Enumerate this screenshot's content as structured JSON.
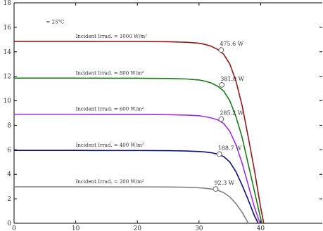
{
  "chart_data": {
    "type": "line",
    "title": "",
    "xlabel": "",
    "ylabel": "",
    "xlim": [
      0,
      50
    ],
    "ylim": [
      0,
      18
    ],
    "xticks": [
      "0",
      "10",
      "20",
      "30",
      "40"
    ],
    "yticks": [
      "0",
      "2",
      "4",
      "6",
      "8",
      "10",
      "12",
      "14",
      "16",
      "18"
    ],
    "grid": false,
    "temperature_label": "= 25°C",
    "series": [
      {
        "name": "Incident Irrad. = 1000 W/m²",
        "color": "#8b1a1a",
        "x": [
          0,
          5,
          10,
          15,
          20,
          25,
          28,
          30,
          31,
          32,
          33,
          34,
          35,
          36,
          37,
          38,
          39,
          40,
          40.5
        ],
        "y": [
          14.85,
          14.85,
          14.85,
          14.84,
          14.84,
          14.82,
          14.78,
          14.7,
          14.6,
          14.45,
          14.2,
          13.8,
          13.0,
          11.6,
          9.6,
          7.0,
          4.3,
          1.3,
          0
        ],
        "mpp": {
          "x": 33.6,
          "y": 14.15
        },
        "power_label": "475.6  W"
      },
      {
        "name": "Incident Irrad. = 800 W/m²",
        "color": "#1a7a1a",
        "x": [
          0,
          5,
          10,
          15,
          20,
          25,
          28,
          30,
          31,
          32,
          33,
          34,
          35,
          36,
          37,
          38,
          39,
          40,
          40.2
        ],
        "y": [
          11.85,
          11.85,
          11.85,
          11.84,
          11.84,
          11.82,
          11.78,
          11.7,
          11.6,
          11.45,
          11.2,
          10.8,
          10.0,
          8.7,
          7.0,
          4.8,
          2.6,
          0.4,
          0
        ],
        "mpp": {
          "x": 33.7,
          "y": 11.3
        },
        "power_label": "381.0  W"
      },
      {
        "name": "Incident Irrad. = 600 W/m²",
        "color": "#9b30e0",
        "x": [
          0,
          5,
          10,
          15,
          20,
          25,
          28,
          30,
          31,
          32,
          33,
          34,
          35,
          36,
          37,
          38,
          39,
          39.9
        ],
        "y": [
          8.9,
          8.9,
          8.9,
          8.89,
          8.89,
          8.87,
          8.83,
          8.78,
          8.7,
          8.6,
          8.45,
          8.15,
          7.5,
          6.4,
          4.9,
          3.1,
          1.3,
          0
        ],
        "mpp": {
          "x": 33.6,
          "y": 8.5
        },
        "power_label": "285.2  W"
      },
      {
        "name": "Incident Irrad. = 400 W/m²",
        "color": "#0d0d7a",
        "x": [
          0,
          5,
          10,
          15,
          20,
          25,
          28,
          30,
          31,
          32,
          33,
          34,
          35,
          36,
          37,
          38,
          39,
          39.6
        ],
        "y": [
          5.95,
          5.95,
          5.95,
          5.94,
          5.94,
          5.93,
          5.9,
          5.86,
          5.82,
          5.76,
          5.65,
          5.45,
          5.0,
          4.2,
          3.1,
          1.9,
          0.6,
          0
        ],
        "mpp": {
          "x": 33.3,
          "y": 5.65
        },
        "power_label": "188.7  W"
      },
      {
        "name": "Incident Irrad. = 200 W/m²",
        "color": "#808080",
        "x": [
          0,
          5,
          10,
          15,
          20,
          25,
          28,
          30,
          31,
          32,
          33,
          34,
          35,
          36,
          37,
          38
        ],
        "y": [
          2.98,
          2.98,
          2.98,
          2.97,
          2.97,
          2.96,
          2.94,
          2.9,
          2.86,
          2.8,
          2.7,
          2.5,
          2.15,
          1.6,
          0.9,
          0
        ],
        "mpp": {
          "x": 32.7,
          "y": 2.8
        },
        "power_label": "92.3  W"
      }
    ]
  }
}
